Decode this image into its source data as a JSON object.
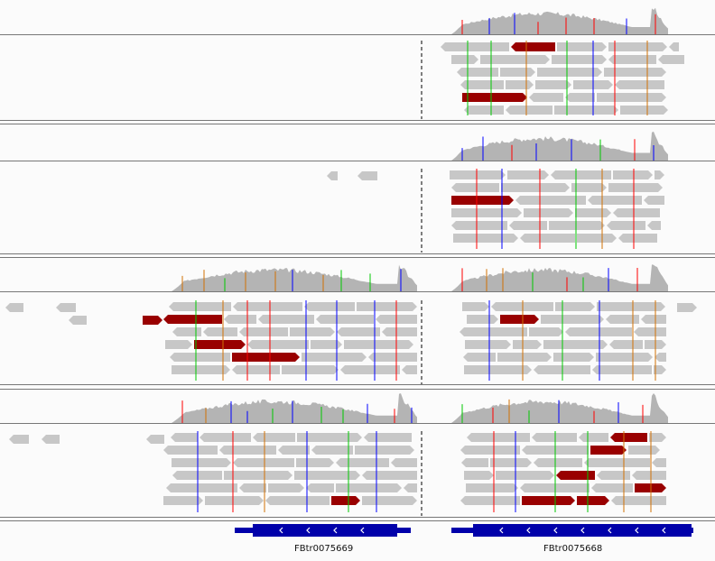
{
  "genes": [
    {
      "label": "FBtr0075669"
    },
    {
      "label": "FBtr0075668"
    }
  ],
  "colors": {
    "background": "#fbfbfb",
    "coverage": "#b4b4b4",
    "read": "#c7c7c7",
    "mismatch_read": "#990000",
    "divider": "#777777",
    "gene": "#0000aa",
    "base_a": "#00c800",
    "base_c": "#0000ff",
    "base_g": "#d17105",
    "base_t": "#ff0000",
    "splice_line": "#000000"
  },
  "icons": {
    "gene_strand": "chevron-left-icon"
  }
}
